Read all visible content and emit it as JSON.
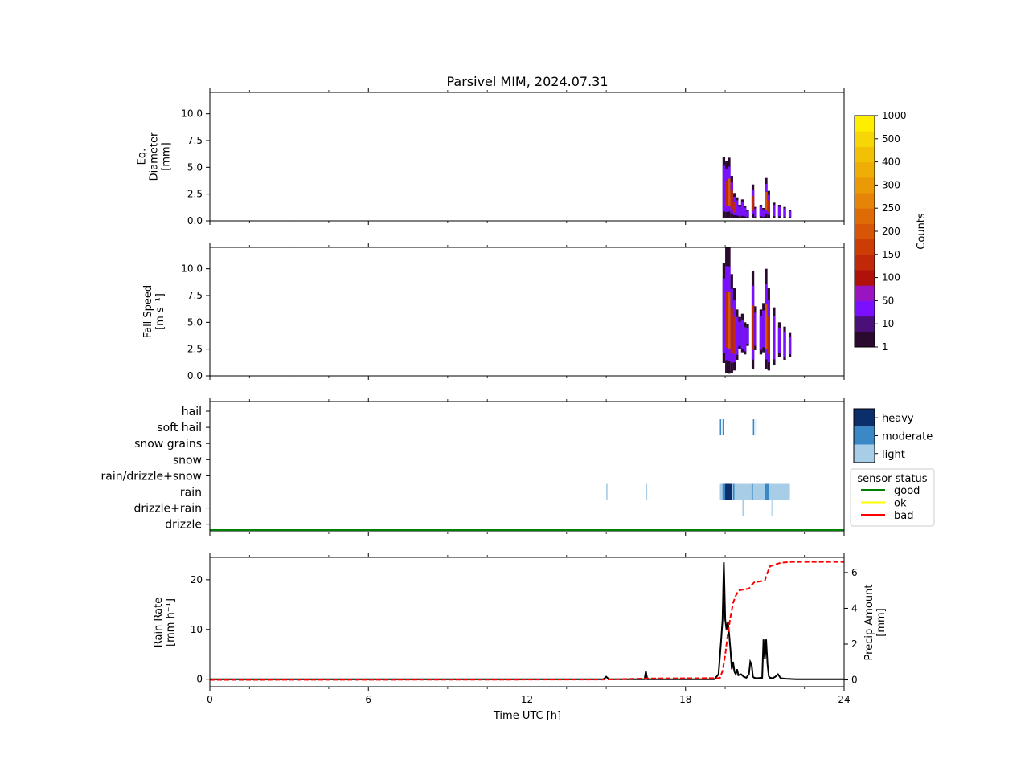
{
  "title": "Parsivel MIM, 2024.07.31",
  "x_axis": {
    "label": "Time UTC [h]",
    "ticks": [
      0,
      6,
      12,
      18,
      24
    ],
    "tick_labels": [
      "0",
      "6",
      "12",
      "18",
      "24"
    ],
    "range": [
      0,
      24
    ]
  },
  "colorbar_counts": {
    "label": "Counts",
    "levels": [
      1,
      10,
      50,
      100,
      150,
      200,
      250,
      300,
      400,
      500,
      1000
    ],
    "tick_labels": [
      "1",
      "10",
      "50",
      "100",
      "150",
      "200",
      "250",
      "300",
      "400",
      "500",
      "1000"
    ],
    "colors": [
      "#2a0a2e",
      "#4b0f7a",
      "#7a10ff",
      "#9a14c0",
      "#b0120a",
      "#c0280a",
      "#cc3d05",
      "#d65506",
      "#de6b05",
      "#e58406",
      "#ea9a07",
      "#eeae06",
      "#f2c005",
      "#f6d606",
      "#ffee00"
    ]
  },
  "colorbar_intensity": {
    "labels": [
      "heavy",
      "moderate",
      "light"
    ],
    "colors": [
      "#0b2f6b",
      "#3a88c6",
      "#a8cde6"
    ]
  },
  "legend_sensor": {
    "title": "sensor status",
    "items": [
      {
        "label": "good",
        "color": "#008000"
      },
      {
        "label": "ok",
        "color": "#ffff00"
      },
      {
        "label": "bad",
        "color": "#ff0000"
      }
    ]
  },
  "chart_data": [
    {
      "type": "heatmap",
      "name": "diameter",
      "ylabel_lines": [
        "Eq.",
        "Diameter",
        "[mm]"
      ],
      "ylim": [
        0,
        12
      ],
      "yticks": [
        0.0,
        2.5,
        5.0,
        7.5,
        10.0
      ],
      "ytick_labels": [
        "0.0",
        "2.5",
        "5.0",
        "7.5",
        "10.0"
      ],
      "cells": [
        {
          "t": 19.4,
          "y0": 0.3,
          "y1": 6.0,
          "c": 1
        },
        {
          "t": 19.5,
          "y0": 0.3,
          "y1": 5.6,
          "c": 2
        },
        {
          "t": 19.6,
          "y0": 0.3,
          "y1": 5.9,
          "c": 3
        },
        {
          "t": 19.7,
          "y0": 0.3,
          "y1": 4.2,
          "c": 2
        },
        {
          "t": 19.8,
          "y0": 0.3,
          "y1": 2.6,
          "c": 2
        },
        {
          "t": 19.9,
          "y0": 0.3,
          "y1": 2.2,
          "c": 1
        },
        {
          "t": 20.0,
          "y0": 0.3,
          "y1": 1.5,
          "c": 1
        },
        {
          "t": 20.1,
          "y0": 0.3,
          "y1": 2.0,
          "c": 1
        },
        {
          "t": 20.2,
          "y0": 0.3,
          "y1": 1.4,
          "c": 1
        },
        {
          "t": 20.3,
          "y0": 0.3,
          "y1": 1.0,
          "c": 1
        },
        {
          "t": 20.5,
          "y0": 0.3,
          "y1": 3.4,
          "c": 2
        },
        {
          "t": 20.6,
          "y0": 0.3,
          "y1": 1.3,
          "c": 1
        },
        {
          "t": 20.8,
          "y0": 0.3,
          "y1": 1.5,
          "c": 1
        },
        {
          "t": 20.9,
          "y0": 0.3,
          "y1": 1.2,
          "c": 1
        },
        {
          "t": 21.0,
          "y0": 0.3,
          "y1": 4.0,
          "c": 3
        },
        {
          "t": 21.1,
          "y0": 0.3,
          "y1": 2.8,
          "c": 2
        },
        {
          "t": 21.3,
          "y0": 0.3,
          "y1": 1.7,
          "c": 1
        },
        {
          "t": 21.5,
          "y0": 0.3,
          "y1": 1.5,
          "c": 1
        },
        {
          "t": 21.7,
          "y0": 0.3,
          "y1": 1.3,
          "c": 1
        },
        {
          "t": 21.9,
          "y0": 0.3,
          "y1": 1.0,
          "c": 0
        }
      ]
    },
    {
      "type": "heatmap",
      "name": "fall_speed",
      "ylabel_lines": [
        "Fall Speed",
        "[m s⁻¹]"
      ],
      "ylim": [
        0,
        12
      ],
      "yticks": [
        0.0,
        2.5,
        5.0,
        7.5,
        10.0
      ],
      "ytick_labels": [
        "0.0",
        "2.5",
        "5.0",
        "7.5",
        "10.0"
      ],
      "cells": [
        {
          "t": 19.4,
          "y0": 1.2,
          "y1": 10.5,
          "c": 1
        },
        {
          "t": 19.5,
          "y0": 0.3,
          "y1": 12.0,
          "c": 2
        },
        {
          "t": 19.6,
          "y0": 0.2,
          "y1": 12.0,
          "c": 3
        },
        {
          "t": 19.7,
          "y0": 0.3,
          "y1": 9.5,
          "c": 2
        },
        {
          "t": 19.8,
          "y0": 0.5,
          "y1": 8.2,
          "c": 2
        },
        {
          "t": 19.9,
          "y0": 1.5,
          "y1": 6.2,
          "c": 1
        },
        {
          "t": 20.0,
          "y0": 2.5,
          "y1": 5.5,
          "c": 1
        },
        {
          "t": 20.1,
          "y0": 2.2,
          "y1": 5.8,
          "c": 1
        },
        {
          "t": 20.2,
          "y0": 2.0,
          "y1": 5.0,
          "c": 1
        },
        {
          "t": 20.3,
          "y0": 2.8,
          "y1": 4.8,
          "c": 1
        },
        {
          "t": 20.5,
          "y0": 0.6,
          "y1": 9.8,
          "c": 2
        },
        {
          "t": 20.6,
          "y0": 2.4,
          "y1": 6.5,
          "c": 1
        },
        {
          "t": 20.8,
          "y0": 2.0,
          "y1": 6.2,
          "c": 1
        },
        {
          "t": 20.9,
          "y0": 2.2,
          "y1": 6.8,
          "c": 1
        },
        {
          "t": 21.0,
          "y0": 0.6,
          "y1": 10.0,
          "c": 3
        },
        {
          "t": 21.1,
          "y0": 0.5,
          "y1": 8.2,
          "c": 2
        },
        {
          "t": 21.3,
          "y0": 1.0,
          "y1": 6.4,
          "c": 1
        },
        {
          "t": 21.5,
          "y0": 1.8,
          "y1": 5.0,
          "c": 1
        },
        {
          "t": 21.7,
          "y0": 1.5,
          "y1": 4.6,
          "c": 1
        },
        {
          "t": 21.9,
          "y0": 1.8,
          "y1": 4.0,
          "c": 0
        }
      ]
    },
    {
      "type": "heatmap",
      "name": "precip_type",
      "categories": [
        "hail",
        "soft hail",
        "snow grains",
        "snow",
        "rain/drizzle+snow",
        "rain",
        "drizzle+rain",
        "drizzle"
      ],
      "events": [
        {
          "t0": 15.0,
          "t1": 15.05,
          "cat": "rain",
          "intensity": "light"
        },
        {
          "t0": 16.5,
          "t1": 16.55,
          "cat": "rain",
          "intensity": "light"
        },
        {
          "t0": 19.3,
          "t1": 19.35,
          "cat": "soft hail",
          "intensity": "moderate"
        },
        {
          "t0": 19.4,
          "t1": 19.43,
          "cat": "soft hail",
          "intensity": "moderate"
        },
        {
          "t0": 20.55,
          "t1": 20.6,
          "cat": "soft hail",
          "intensity": "moderate"
        },
        {
          "t0": 20.65,
          "t1": 20.68,
          "cat": "soft hail",
          "intensity": "moderate"
        },
        {
          "t0": 19.3,
          "t1": 21.95,
          "cat": "rain",
          "intensity": "light"
        },
        {
          "t0": 19.4,
          "t1": 19.55,
          "cat": "rain",
          "intensity": "moderate"
        },
        {
          "t0": 19.5,
          "t1": 19.75,
          "cat": "rain",
          "intensity": "heavy"
        },
        {
          "t0": 19.8,
          "t1": 19.85,
          "cat": "rain",
          "intensity": "moderate"
        },
        {
          "t0": 20.5,
          "t1": 20.55,
          "cat": "rain",
          "intensity": "moderate"
        },
        {
          "t0": 21.0,
          "t1": 21.15,
          "cat": "rain",
          "intensity": "moderate"
        },
        {
          "t0": 20.15,
          "t1": 20.2,
          "cat": "drizzle+rain",
          "intensity": "light"
        },
        {
          "t0": 21.25,
          "t1": 21.28,
          "cat": "drizzle+rain",
          "intensity": "light"
        }
      ],
      "sensor_status": {
        "status": "good",
        "t0": 0,
        "t1": 24
      }
    },
    {
      "type": "line",
      "name": "rain_rate",
      "ylabel_lines": [
        "Rain Rate",
        "[mm h⁻¹]"
      ],
      "ylim": [
        -1.5,
        24.5
      ],
      "yticks": [
        0,
        10,
        20
      ],
      "ytick_labels": [
        "0",
        "10",
        "20"
      ],
      "x": [
        0,
        14.9,
        15.0,
        15.1,
        16.45,
        16.5,
        16.55,
        19.1,
        19.25,
        19.35,
        19.4,
        19.45,
        19.5,
        19.55,
        19.6,
        19.65,
        19.7,
        19.75,
        19.8,
        19.85,
        19.9,
        19.95,
        20.0,
        20.1,
        20.2,
        20.3,
        20.4,
        20.45,
        20.5,
        20.55,
        20.6,
        20.7,
        20.9,
        20.95,
        21.0,
        21.05,
        21.1,
        21.15,
        21.2,
        21.3,
        21.4,
        21.5,
        21.6,
        21.8,
        22.2,
        24.0
      ],
      "y": [
        0,
        0,
        0.5,
        0,
        0,
        1.6,
        0,
        0,
        1.0,
        8.0,
        12.0,
        23.5,
        12.0,
        10.0,
        11.5,
        9.0,
        6.0,
        2.0,
        3.5,
        1.5,
        1.0,
        2.0,
        0.8,
        1.0,
        0.5,
        0.3,
        1.0,
        3.5,
        3.0,
        0.5,
        0.3,
        0.2,
        0.3,
        8.0,
        4.0,
        8.0,
        3.0,
        0.6,
        0.3,
        0.2,
        0.5,
        1.0,
        0.2,
        0.1,
        0,
        0
      ],
      "secondary": {
        "name": "precip_amount",
        "ylabel_lines": [
          "Precip Amount",
          "[mm]"
        ],
        "ylim": [
          -0.38,
          6.85
        ],
        "yticks": [
          0,
          2,
          4,
          6
        ],
        "ytick_labels": [
          "0",
          "2",
          "4",
          "6"
        ],
        "style": "dashed",
        "x": [
          0,
          15.0,
          16.5,
          19.3,
          19.4,
          19.5,
          19.6,
          19.7,
          19.8,
          19.9,
          20.0,
          20.2,
          20.4,
          20.5,
          20.6,
          20.8,
          21.0,
          21.1,
          21.2,
          21.4,
          21.6,
          22.0,
          24.0
        ],
        "y": [
          0,
          0.02,
          0.08,
          0.1,
          0.5,
          1.4,
          2.6,
          3.5,
          4.3,
          4.7,
          5.0,
          5.05,
          5.1,
          5.3,
          5.45,
          5.5,
          5.55,
          6.0,
          6.35,
          6.45,
          6.55,
          6.6,
          6.6
        ]
      }
    }
  ]
}
